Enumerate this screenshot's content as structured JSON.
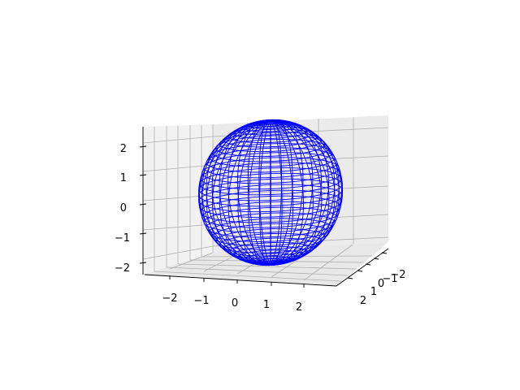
{
  "chart_data": {
    "type": "surface-wireframe",
    "title": "",
    "surface": {
      "shape": "ellipsoid",
      "color": "#0000ff",
      "center": [
        0,
        0,
        0
      ],
      "semi_axes": [
        2.5,
        2.0,
        2.2
      ],
      "u_lines": 40,
      "v_lines": 40
    },
    "view": {
      "elevation_deg": 10,
      "azimuth_deg": -60
    },
    "x_axis": {
      "label": "",
      "ticks": [
        -2,
        -1,
        0,
        1,
        2
      ],
      "tick_labels": [
        "−2",
        "−1",
        "0",
        "1",
        "2"
      ],
      "range": [
        -2.8,
        2.8
      ]
    },
    "y_axis": {
      "label": "",
      "ticks": [
        -2,
        -1,
        0,
        1,
        2
      ],
      "tick_labels": [
        "−2",
        "−1",
        "0",
        "1",
        "2"
      ],
      "range": [
        -2.8,
        2.8
      ]
    },
    "z_axis": {
      "label": "",
      "ticks": [
        -2,
        -1,
        0,
        1,
        2
      ],
      "tick_labels": [
        "−2",
        "−1",
        "0",
        "1",
        "2"
      ],
      "range": [
        -2.4,
        2.4
      ]
    },
    "grid": true
  }
}
